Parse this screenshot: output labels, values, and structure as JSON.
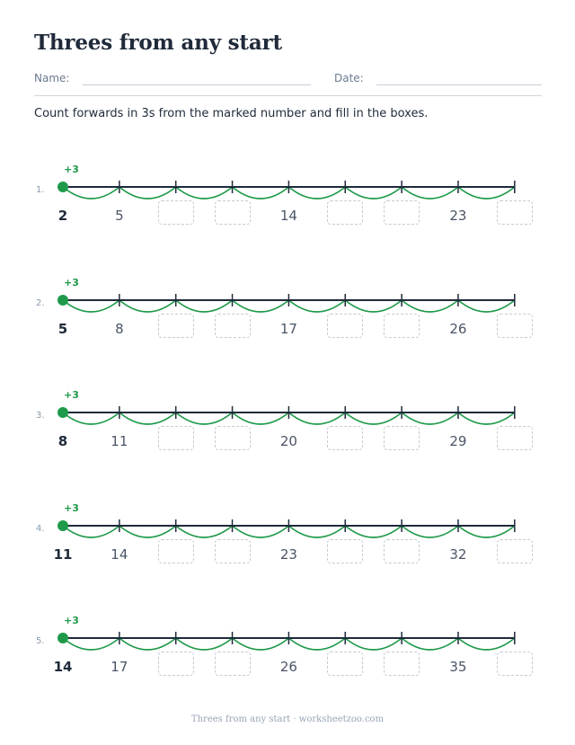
{
  "title": "Threes from any start",
  "fields": {
    "name_label": "Name:",
    "date_label": "Date:"
  },
  "instruction": "Count forwards in 3s from the marked number and fill in the boxes.",
  "jump_label": "+3",
  "colors": {
    "accent": "#1f9a4a",
    "ink": "#1f2a3a",
    "box_border": "#c5cad1"
  },
  "problems": [
    {
      "number": "1.",
      "start": "2",
      "cells": [
        "2",
        "5",
        null,
        null,
        "14",
        null,
        null,
        "23",
        null
      ]
    },
    {
      "number": "2.",
      "start": "5",
      "cells": [
        "5",
        "8",
        null,
        null,
        "17",
        null,
        null,
        "26",
        null
      ]
    },
    {
      "number": "3.",
      "start": "8",
      "cells": [
        "8",
        "11",
        null,
        null,
        "20",
        null,
        null,
        "29",
        null
      ]
    },
    {
      "number": "4.",
      "start": "11",
      "cells": [
        "11",
        "14",
        null,
        null,
        "23",
        null,
        null,
        "32",
        null
      ]
    },
    {
      "number": "5.",
      "start": "14",
      "cells": [
        "14",
        "17",
        null,
        null,
        "26",
        null,
        null,
        "35",
        null
      ]
    }
  ],
  "footer": "Threes from any start · worksheetzoo.com"
}
